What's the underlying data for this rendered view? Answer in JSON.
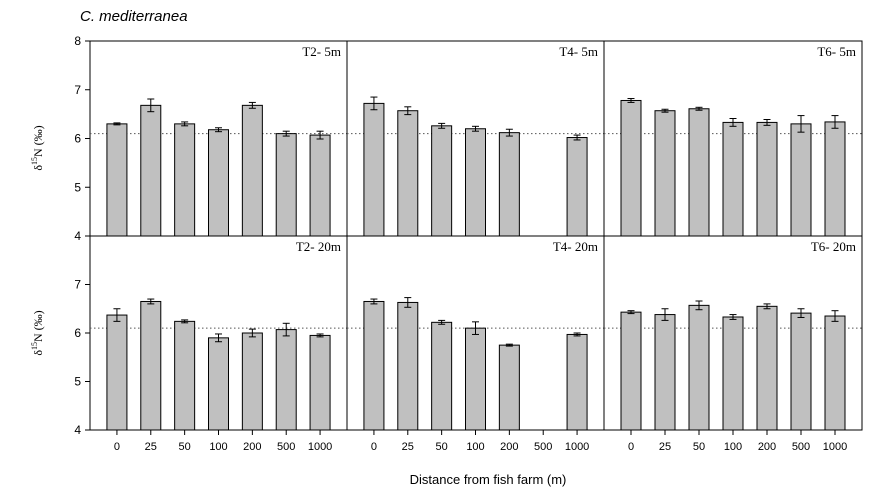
{
  "figure": {
    "title": "C. mediterranea",
    "xlabel": "Distance from fish farm (m)",
    "ylabel_delta": "δ",
    "ylabel_sup": "15",
    "ylabel_rest": "N (‰)"
  },
  "colors": {
    "bar_fill": "#c0c0c0",
    "bar_stroke": "#000000",
    "reference_line": "#555555"
  },
  "chart_data": [
    {
      "type": "bar",
      "title": "T2- 5m",
      "categories": [
        "0",
        "25",
        "50",
        "100",
        "200",
        "500",
        "1000"
      ],
      "values": [
        6.3,
        6.68,
        6.3,
        6.18,
        6.68,
        6.1,
        6.07
      ],
      "errors": [
        0.02,
        0.13,
        0.04,
        0.04,
        0.06,
        0.05,
        0.08
      ],
      "ylim": [
        4,
        8
      ],
      "reference_line": 6.1
    },
    {
      "type": "bar",
      "title": "T4- 5m",
      "categories": [
        "0",
        "25",
        "50",
        "100",
        "200",
        "500",
        "1000"
      ],
      "values": [
        6.72,
        6.57,
        6.26,
        6.2,
        6.12,
        null,
        6.02
      ],
      "errors": [
        0.13,
        0.08,
        0.05,
        0.05,
        0.07,
        null,
        0.05
      ],
      "ylim": [
        4,
        8
      ],
      "reference_line": 6.1
    },
    {
      "type": "bar",
      "title": "T6- 5m",
      "categories": [
        "0",
        "25",
        "50",
        "100",
        "200",
        "500",
        "1000"
      ],
      "values": [
        6.78,
        6.57,
        6.61,
        6.33,
        6.33,
        6.3,
        6.34
      ],
      "errors": [
        0.04,
        0.03,
        0.03,
        0.08,
        0.06,
        0.17,
        0.13
      ],
      "ylim": [
        4,
        8
      ],
      "reference_line": 6.1
    },
    {
      "type": "bar",
      "title": "T2- 20m",
      "categories": [
        "0",
        "25",
        "50",
        "100",
        "200",
        "500",
        "1000"
      ],
      "values": [
        6.37,
        6.65,
        6.24,
        5.9,
        6.0,
        6.07,
        5.95
      ],
      "errors": [
        0.13,
        0.05,
        0.03,
        0.08,
        0.08,
        0.13,
        0.03
      ],
      "ylim": [
        4,
        8
      ],
      "reference_line": 6.1
    },
    {
      "type": "bar",
      "title": "T4- 20m",
      "categories": [
        "0",
        "25",
        "50",
        "100",
        "200",
        "500",
        "1000"
      ],
      "values": [
        6.65,
        6.63,
        6.22,
        6.1,
        5.75,
        null,
        5.97
      ],
      "errors": [
        0.05,
        0.1,
        0.04,
        0.13,
        0.02,
        null,
        0.03
      ],
      "ylim": [
        4,
        8
      ],
      "reference_line": 6.1
    },
    {
      "type": "bar",
      "title": "T6- 20m",
      "categories": [
        "0",
        "25",
        "50",
        "100",
        "200",
        "500",
        "1000"
      ],
      "values": [
        6.43,
        6.38,
        6.57,
        6.33,
        6.55,
        6.41,
        6.35
      ],
      "errors": [
        0.03,
        0.12,
        0.09,
        0.05,
        0.05,
        0.09,
        0.11
      ],
      "ylim": [
        4,
        8
      ],
      "reference_line": 6.1
    }
  ],
  "yticks": [
    "4",
    "5",
    "6",
    "7",
    "8"
  ]
}
